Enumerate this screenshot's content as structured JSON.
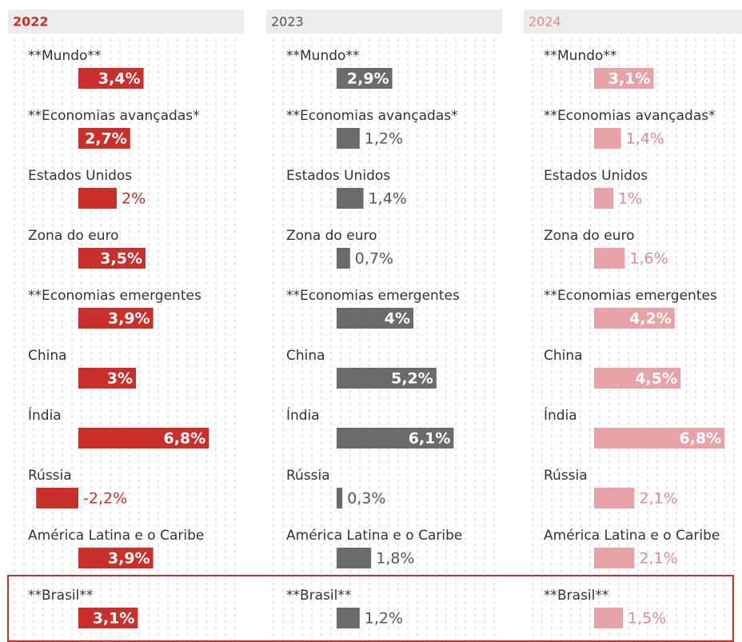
{
  "chart_data": [
    {
      "type": "bar",
      "orientation": "horizontal",
      "title": "2022",
      "color": "#c9302c",
      "categories": [
        "**Mundo**",
        "**Economias avançadas*",
        "Estados Unidos",
        "Zona do euro",
        "**Economias emergentes",
        "China",
        "Índia",
        "Rússia",
        "América Latina e o Caribe",
        "**Brasil**"
      ],
      "values": [
        3.4,
        2.7,
        2,
        3.5,
        3.9,
        3,
        6.8,
        -2.2,
        3.9,
        3.1
      ],
      "value_labels": [
        "3,4%",
        "2,7%",
        "2%",
        "3,5%",
        "3,9%",
        "3%",
        "6,8%",
        "-2,2%",
        "3,9%",
        "3,1%"
      ]
    },
    {
      "type": "bar",
      "orientation": "horizontal",
      "title": "2023",
      "color": "#6b6b6b",
      "categories": [
        "**Mundo**",
        "**Economias avançadas*",
        "Estados Unidos",
        "Zona do euro",
        "**Economias emergentes",
        "China",
        "Índia",
        "Rússia",
        "América Latina e o Caribe",
        "**Brasil**"
      ],
      "values": [
        2.9,
        1.2,
        1.4,
        0.7,
        4,
        5.2,
        6.1,
        0.3,
        1.8,
        1.2
      ],
      "value_labels": [
        "2,9%",
        "1,2%",
        "1,4%",
        "0,7%",
        "4%",
        "5,2%",
        "6,1%",
        "0,3%",
        "1,8%",
        "1,2%"
      ]
    },
    {
      "type": "bar",
      "orientation": "horizontal",
      "title": "2024",
      "color": "#e8a3a8",
      "categories": [
        "**Mundo**",
        "**Economias avançadas*",
        "Estados Unidos",
        "Zona do euro",
        "**Economias emergentes",
        "China",
        "Índia",
        "Rússia",
        "América Latina e o Caribe",
        "**Brasil**"
      ],
      "values": [
        3.1,
        1.4,
        1,
        1.6,
        4.2,
        4.5,
        6.8,
        2.1,
        2.1,
        1.5
      ],
      "value_labels": [
        "3,1%",
        "1,4%",
        "1%",
        "1,6%",
        "4,2%",
        "4,5%",
        "6,8%",
        "2,1%",
        "2,1%",
        "1,5%"
      ]
    }
  ]
}
